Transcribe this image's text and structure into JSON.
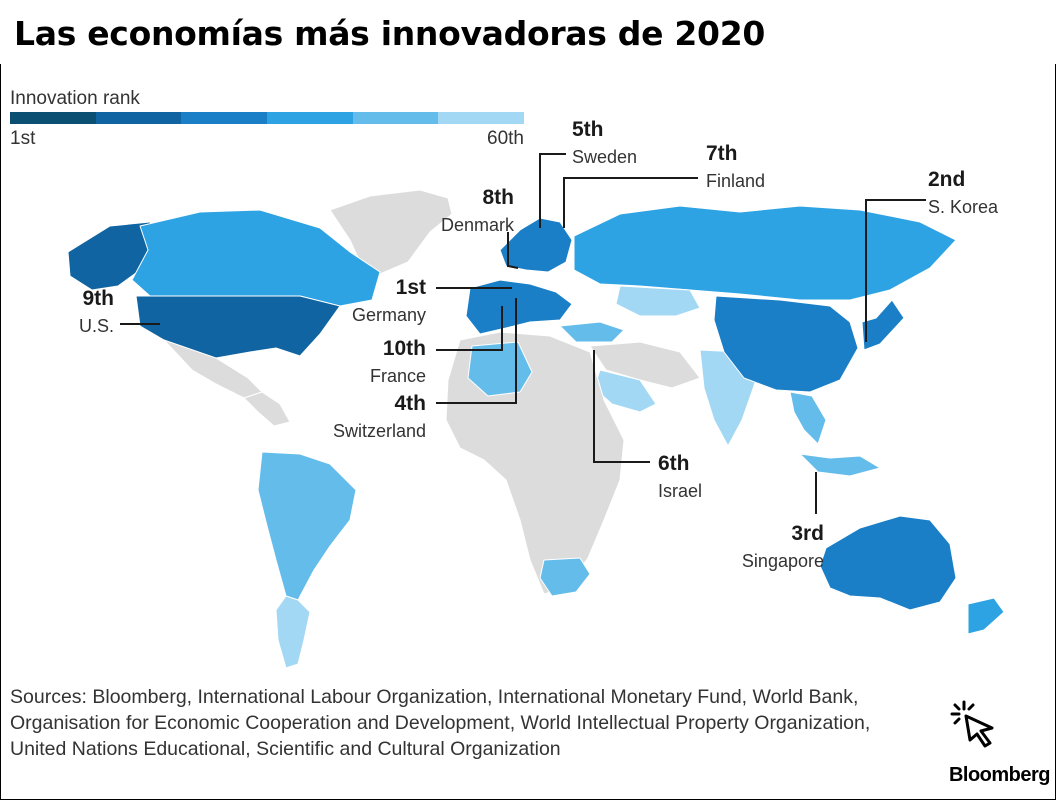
{
  "title": "Las economías más innovadoras de 2020",
  "legend": {
    "label": "Innovation rank",
    "min_label": "1st",
    "max_label": "60th",
    "colors": [
      "#0b4f72",
      "#0f64a1",
      "#1a7fc6",
      "#2ea3e4",
      "#64bceb",
      "#a3d8f4"
    ]
  },
  "colors": {
    "not_ranked": "#dcdcdc",
    "border": "#ffffff",
    "callout_line": "#1a1a1a"
  },
  "callouts": [
    {
      "rank": "1st",
      "country": "Germany"
    },
    {
      "rank": "2nd",
      "country": "S. Korea"
    },
    {
      "rank": "3rd",
      "country": "Singapore"
    },
    {
      "rank": "4th",
      "country": "Switzerland"
    },
    {
      "rank": "5th",
      "country": "Sweden"
    },
    {
      "rank": "6th",
      "country": "Israel"
    },
    {
      "rank": "7th",
      "country": "Finland"
    },
    {
      "rank": "8th",
      "country": "Denmark"
    },
    {
      "rank": "9th",
      "country": "U.S."
    },
    {
      "rank": "10th",
      "country": "France"
    }
  ],
  "map_regions": [
    {
      "region": "Canada",
      "shade": 3
    },
    {
      "region": "Alaska",
      "shade": 1
    },
    {
      "region": "U.S.",
      "shade": 1
    },
    {
      "region": "South America",
      "shade": 4
    },
    {
      "region": "Argentina",
      "shade": 5
    },
    {
      "region": "Russia",
      "shade": 3
    },
    {
      "region": "China",
      "shade": 2
    },
    {
      "region": "Japan",
      "shade": 2
    },
    {
      "region": "Australia",
      "shade": 2
    },
    {
      "region": "New Zealand",
      "shade": 3
    },
    {
      "region": "India",
      "shade": 5
    },
    {
      "region": "Kazakhstan",
      "shade": 5
    },
    {
      "region": "Saudi Arabia",
      "shade": 5
    },
    {
      "region": "South Africa",
      "shade": 4
    },
    {
      "region": "Algeria",
      "shade": 4
    },
    {
      "region": "Western Europe",
      "shade": 2
    },
    {
      "region": "Turkey",
      "shade": 4
    },
    {
      "region": "Southeast Asia",
      "shade": 4
    }
  ],
  "sources": "Sources: Bloomberg, International Labour Organization, International Monetary Fund, World Bank, Organisation for Economic Cooperation and Development, World Intellectual Property Organization, United Nations Educational, Scientific and Cultural Organization",
  "brand": "Bloomberg",
  "cursor_icon": "click-cursor-icon"
}
